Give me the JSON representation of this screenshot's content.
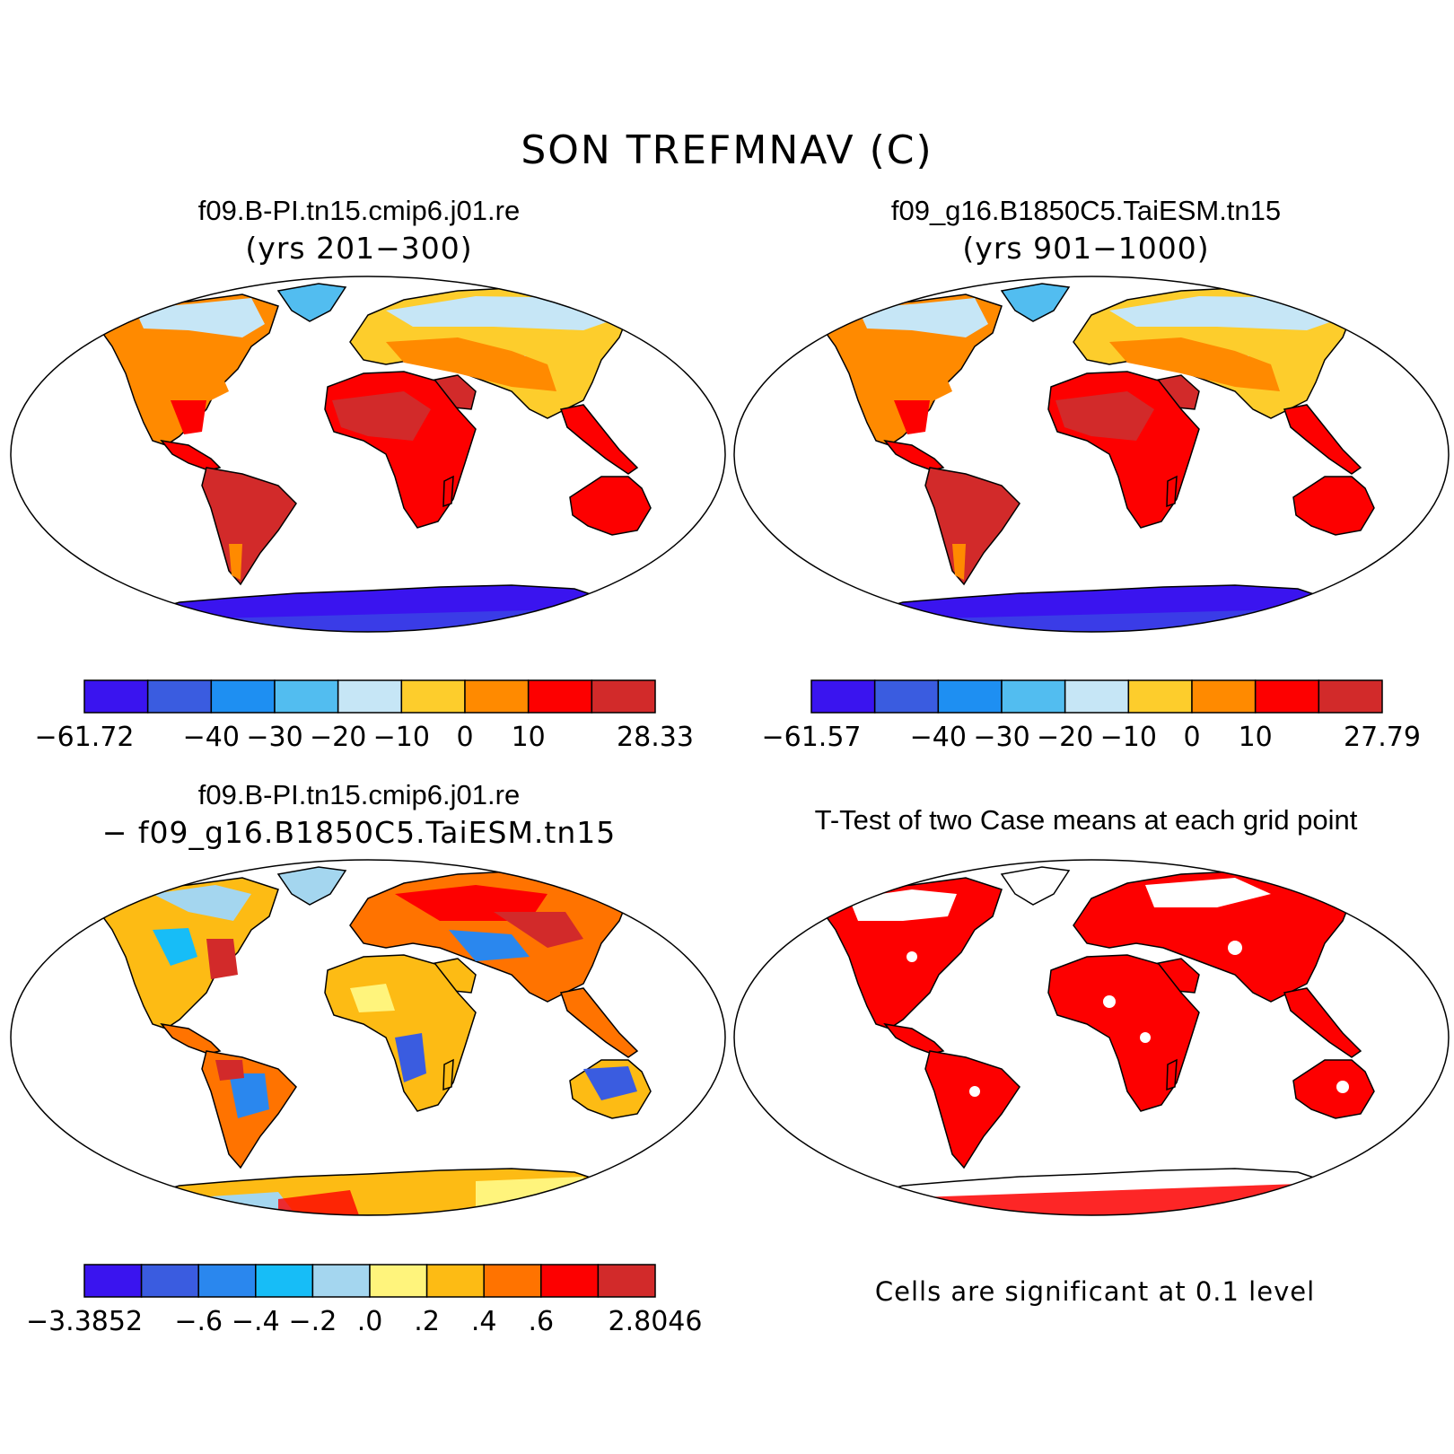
{
  "figure": {
    "title": "SON TREFMNAV (C)"
  },
  "panels": {
    "case1": {
      "title": "f09.B-PI.tn15.cmip6.j01.re",
      "subtitle": "(yrs 201−300)",
      "colorbar": {
        "colors": [
          "#3a14ef",
          "#3a5ce0",
          "#1e8ff2",
          "#52bdf0",
          "#c6e6f6",
          "#fdcd2c",
          "#ff8a00",
          "#fd0000",
          "#d22a2a"
        ],
        "labels": [
          "−61.72",
          "−40",
          "−30",
          "−20",
          "−10",
          "0",
          "10",
          "28.33"
        ],
        "label_positions": [
          0,
          2,
          3,
          4,
          5,
          6,
          7,
          9
        ]
      }
    },
    "case2": {
      "title": "f09_g16.B1850C5.TaiESM.tn15",
      "subtitle": "(yrs 901−1000)",
      "colorbar": {
        "colors": [
          "#3a14ef",
          "#3a5ce0",
          "#1e8ff2",
          "#52bdf0",
          "#c6e6f6",
          "#fdcd2c",
          "#ff8a00",
          "#fd0000",
          "#d22a2a"
        ],
        "labels": [
          "−61.57",
          "−40",
          "−30",
          "−20",
          "−10",
          "0",
          "10",
          "27.79"
        ],
        "label_positions": [
          0,
          2,
          3,
          4,
          5,
          6,
          7,
          9
        ]
      }
    },
    "diff": {
      "title": "f09.B-PI.tn15.cmip6.j01.re",
      "subtitle": "− f09_g16.B1850C5.TaiESM.tn15",
      "colorbar": {
        "colors": [
          "#3a14ef",
          "#3a5ce0",
          "#2a87ee",
          "#17bdf7",
          "#a4d6ef",
          "#fff47c",
          "#fdbb14",
          "#ff7300",
          "#fd0000",
          "#d22a2a"
        ],
        "labels": [
          "−3.3852",
          "−.6",
          "−.4",
          "−.2",
          ".0",
          ".2",
          ".4",
          ".6",
          "2.8046"
        ],
        "label_positions": [
          0,
          2,
          3,
          4,
          5,
          6,
          7,
          8,
          10
        ]
      }
    },
    "ttest": {
      "title": "T-Test of two Case means at each grid point",
      "note": "Cells are significant at 0.1 level",
      "color": "#fd0000"
    }
  }
}
